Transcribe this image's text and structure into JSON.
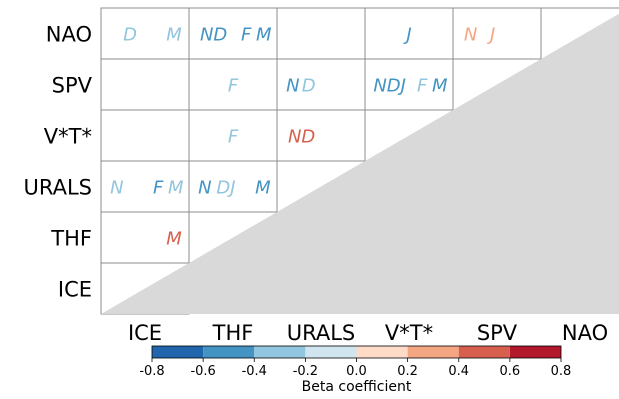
{
  "chart_data": {
    "type": "heatmap",
    "rows": [
      "NAO",
      "SPV",
      "V*T*",
      "URALS",
      "THF",
      "ICE"
    ],
    "columns": [
      "ICE",
      "THF",
      "URALS",
      "V*T*",
      "SPV",
      "NAO"
    ],
    "cells": [
      {
        "row": "NAO",
        "col": "ICE",
        "marks": [
          {
            "text": "D",
            "beta": -0.3
          },
          {
            "text": "M",
            "beta": -0.3
          }
        ]
      },
      {
        "row": "NAO",
        "col": "THF",
        "marks": [
          {
            "text": "ND",
            "beta": -0.5
          },
          {
            "text": "F",
            "beta": -0.5
          },
          {
            "text": "M",
            "beta": -0.5
          }
        ]
      },
      {
        "row": "NAO",
        "col": "V*T*",
        "marks": [
          {
            "text": "J",
            "beta": -0.5
          }
        ]
      },
      {
        "row": "NAO",
        "col": "SPV",
        "marks": [
          {
            "text": "N",
            "beta": 0.3
          },
          {
            "text": "J",
            "beta": 0.3
          }
        ]
      },
      {
        "row": "SPV",
        "col": "THF",
        "marks": [
          {
            "text": "F",
            "beta": -0.3
          }
        ]
      },
      {
        "row": "SPV",
        "col": "URALS",
        "marks": [
          {
            "text": "N",
            "beta": -0.5
          },
          {
            "text": "D",
            "beta": -0.3
          }
        ]
      },
      {
        "row": "SPV",
        "col": "V*T*",
        "marks": [
          {
            "text": "NDJ",
            "beta": -0.5
          },
          {
            "text": "F",
            "beta": -0.3
          },
          {
            "text": "M",
            "beta": -0.5
          }
        ]
      },
      {
        "row": "V*T*",
        "col": "THF",
        "marks": [
          {
            "text": "F",
            "beta": -0.3
          }
        ]
      },
      {
        "row": "V*T*",
        "col": "URALS",
        "marks": [
          {
            "text": "ND",
            "beta": 0.5
          }
        ]
      },
      {
        "row": "URALS",
        "col": "ICE",
        "marks": [
          {
            "text": "N",
            "beta": -0.3
          },
          {
            "text": "F",
            "beta": -0.5
          },
          {
            "text": "M",
            "beta": -0.3
          }
        ]
      },
      {
        "row": "URALS",
        "col": "THF",
        "marks": [
          {
            "text": "N",
            "beta": -0.5
          },
          {
            "text": "DJ",
            "beta": -0.3
          },
          {
            "text": "M",
            "beta": -0.5
          }
        ]
      },
      {
        "row": "THF",
        "col": "ICE",
        "marks": [
          {
            "text": "M",
            "beta": 0.5
          }
        ]
      }
    ],
    "colorbar": {
      "label": "Beta coefficient",
      "range": [
        -0.8,
        0.8
      ],
      "ticks": [
        "-0.8",
        "-0.6",
        "-0.4",
        "-0.2",
        "0.0",
        "0.2",
        "0.4",
        "0.6",
        "0.8"
      ],
      "bins": [
        {
          "from": -0.8,
          "to": -0.6,
          "color": "#2166ac"
        },
        {
          "from": -0.6,
          "to": -0.4,
          "color": "#4393c3"
        },
        {
          "from": -0.4,
          "to": -0.2,
          "color": "#92c5de"
        },
        {
          "from": -0.2,
          "to": 0.0,
          "color": "#d1e5f0"
        },
        {
          "from": 0.0,
          "to": 0.2,
          "color": "#fddbc7"
        },
        {
          "from": 0.2,
          "to": 0.4,
          "color": "#f4a582"
        },
        {
          "from": 0.4,
          "to": 0.6,
          "color": "#d6604d"
        },
        {
          "from": 0.6,
          "to": 0.8,
          "color": "#b2182b"
        }
      ]
    },
    "lower_triangle_color": "#d9d9d9",
    "grid_color": "#8c8c8c"
  }
}
